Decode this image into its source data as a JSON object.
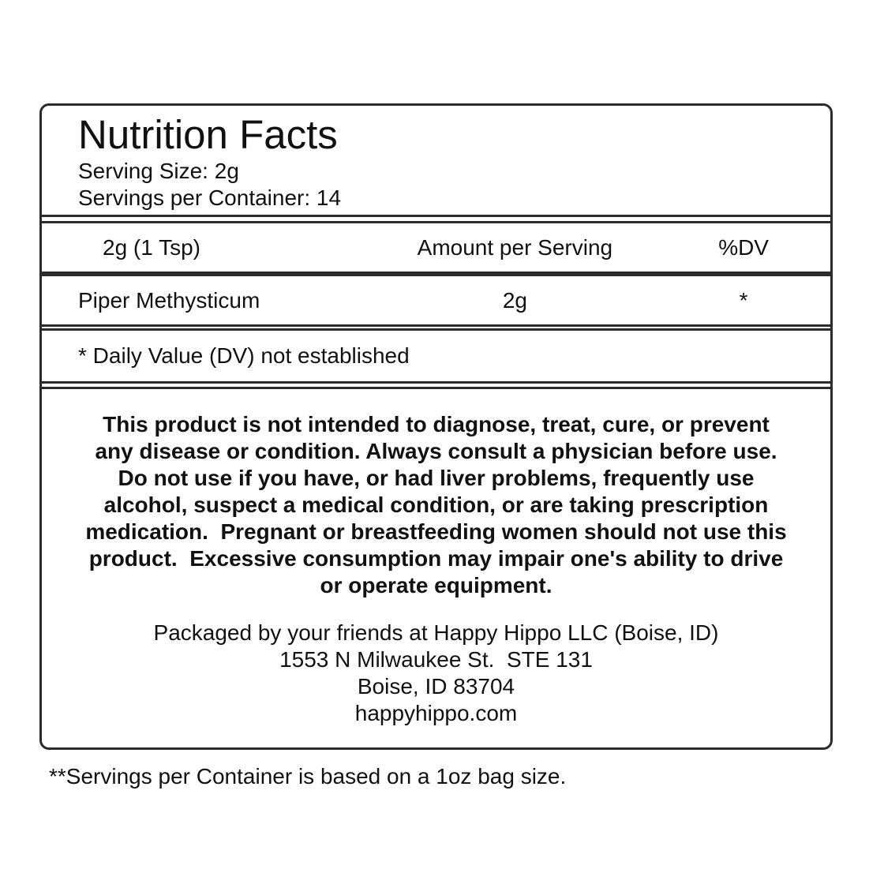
{
  "label": {
    "header": {
      "title": "Nutrition Facts",
      "serving_size": "Serving Size: 2g",
      "servings_per_container": "Servings per Container: 14"
    },
    "table": {
      "columns": {
        "serving": "2g (1 Tsp)",
        "amount": "Amount per Serving",
        "dv": "%DV"
      },
      "rows": [
        {
          "name": "Piper Methysticum",
          "amount": "2g",
          "dv": "*"
        }
      ],
      "dv_footnote": "* Daily Value (DV) not established"
    },
    "disclaimer": {
      "lines": [
        "This product is not intended to diagnose, treat, cure, or prevent",
        "any disease or condition. Always consult a physician before use.",
        "Do not use if you have, or had liver problems, frequently use",
        "alcohol, suspect a medical condition, or are taking prescription",
        "medication.  Pregnant or breastfeeding women should not use this",
        "product.  Excessive consumption may impair one's ability to drive",
        "or operate equipment."
      ]
    },
    "packager": {
      "lines": [
        "Packaged by your friends at Happy Hippo LLC (Boise, ID)",
        "1553 N Milwaukee St.  STE 131",
        "Boise, ID 83704",
        "happyhippo.com"
      ]
    }
  },
  "page_footnote": "**Servings per Container is based on a 1oz bag size."
}
